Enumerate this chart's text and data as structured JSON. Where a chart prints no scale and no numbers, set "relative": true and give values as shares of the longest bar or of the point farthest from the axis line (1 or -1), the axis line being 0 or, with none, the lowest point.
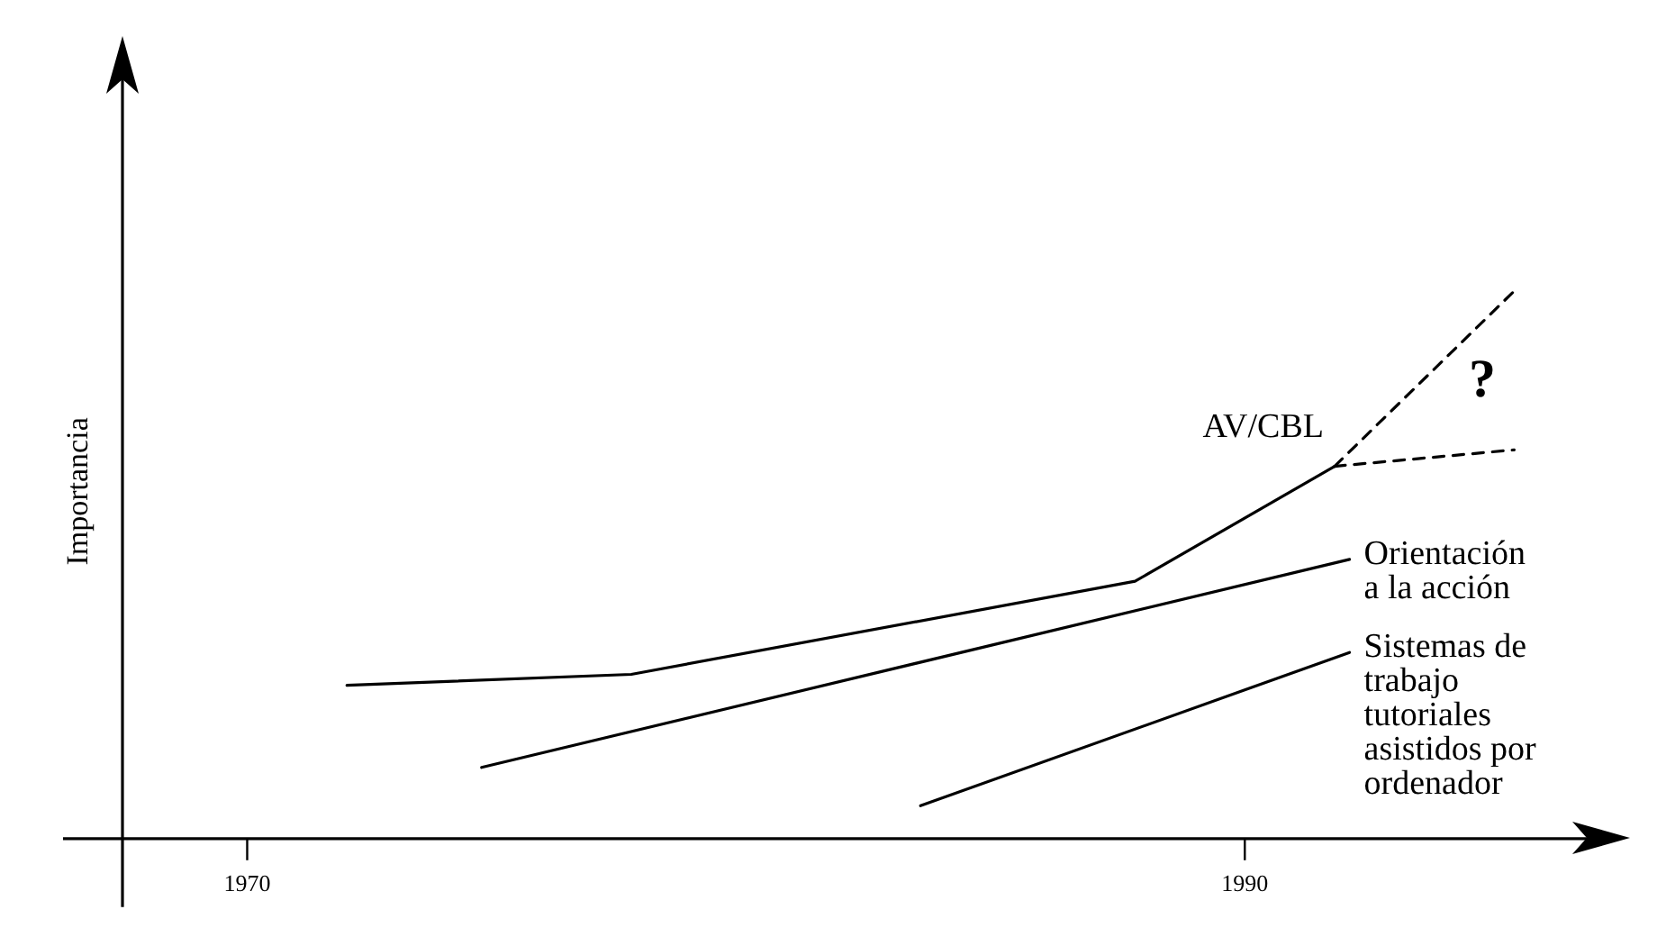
{
  "chart_data": {
    "type": "line",
    "relative": true,
    "ylabel": "Importancia",
    "xlim": [
      1967.5,
      1997
    ],
    "xticks": [
      1970,
      1990
    ],
    "grid": false,
    "legend": false,
    "marker": "none",
    "tick_labels": "x",
    "series": [
      {
        "name": "AV/CBL",
        "color": "#000000",
        "x": [
          1972.0,
          1977.7,
          1987.8,
          1991.8
        ],
        "values": [
          0.28,
          0.3,
          0.47,
          0.68
        ]
      },
      {
        "color": "#000000",
        "line_style": "dashed",
        "x": [
          1991.8,
          1995.4
        ],
        "values": [
          0.68,
          1.0
        ]
      },
      {
        "color": "#000000",
        "line_style": "dashed",
        "x": [
          1991.8,
          1995.4
        ],
        "values": [
          0.68,
          0.71
        ]
      },
      {
        "name": "Orientación a la acción",
        "color": "#000000",
        "x": [
          1974.7,
          1992.1
        ],
        "values": [
          0.13,
          0.51
        ]
      },
      {
        "name": "Sistemas de trabajo tutoriales asistidos por ordenador",
        "color": "#000000",
        "x": [
          1983.5,
          1992.1
        ],
        "values": [
          0.06,
          0.34
        ]
      }
    ],
    "annotations": [
      "?"
    ]
  }
}
